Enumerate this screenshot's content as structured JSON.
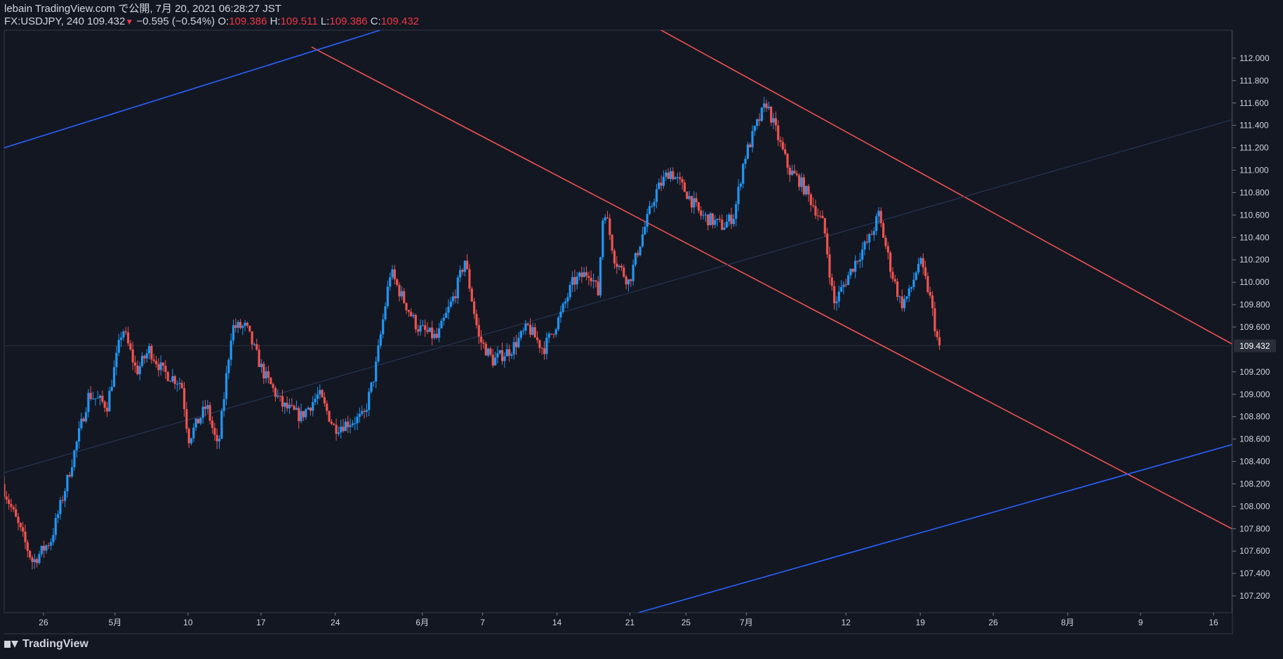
{
  "header": {
    "publish_line": "lebain TradingView.com で公開, 7月 20, 2021 06:28:27 JST",
    "symbol": "FX:USDJPY, 240",
    "last": "109.432",
    "down_arrow": "▼",
    "change": "−0.595 (−0.54%)",
    "o_label": "O:",
    "o_value": "109.386",
    "h_label": "H:",
    "h_value": "109.511",
    "l_label": "L:",
    "l_value": "109.386",
    "c_label": "C:",
    "c_value": "109.432"
  },
  "footer": {
    "brand": "TradingView",
    "icon": "tradingview-logo-icon"
  },
  "colors": {
    "up": "#2962ff",
    "up_wick": "#2196f3",
    "down": "#ef5350",
    "bg": "#131722",
    "grid": "#1e2330",
    "text": "#d1d4dc"
  },
  "chart_data": {
    "type": "candlestick",
    "symbol": "FX:USDJPY",
    "interval": "240",
    "ylim": [
      107.05,
      112.25
    ],
    "y_ticks": [
      112.0,
      111.8,
      111.6,
      111.4,
      111.2,
      111.0,
      110.8,
      110.6,
      110.4,
      110.2,
      110.0,
      109.8,
      109.6,
      109.2,
      109.0,
      108.8,
      108.6,
      108.4,
      108.2,
      108.0,
      107.8,
      107.6,
      107.4,
      107.2
    ],
    "y_tick_labels": [
      "112.000",
      "111.800",
      "111.600",
      "111.400",
      "111.200",
      "111.000",
      "110.800",
      "110.600",
      "110.400",
      "110.200",
      "110.000",
      "109.800",
      "109.600",
      "109.200",
      "109.000",
      "108.800",
      "108.600",
      "108.400",
      "108.200",
      "108.000",
      "107.800",
      "107.600",
      "107.400",
      "107.200"
    ],
    "last_price": 109.432,
    "last_price_label": "109.432",
    "x_range": [
      0,
      87.5
    ],
    "x_ticks": [
      {
        "label": "26",
        "day": 2.8
      },
      {
        "label": "5月",
        "day": 7.9
      },
      {
        "label": "10",
        "day": 13.1
      },
      {
        "label": "17",
        "day": 18.3
      },
      {
        "label": "24",
        "day": 23.6
      },
      {
        "label": "6月",
        "day": 29.8
      },
      {
        "label": "7",
        "day": 34.1
      },
      {
        "label": "14",
        "day": 39.4
      },
      {
        "label": "21",
        "day": 44.6
      },
      {
        "label": "25",
        "day": 48.6
      },
      {
        "label": "7月",
        "day": 52.9
      },
      {
        "label": "12",
        "day": 60.0
      },
      {
        "label": "19",
        "day": 65.3
      },
      {
        "label": "26",
        "day": 70.5
      },
      {
        "label": "8月",
        "day": 75.8
      },
      {
        "label": "9",
        "day": 81.0
      },
      {
        "label": "16",
        "day": 86.2
      }
    ],
    "path_points": [
      [
        0,
        108.2
      ],
      [
        2.2,
        107.5
      ],
      [
        3.5,
        107.7
      ],
      [
        4.6,
        108.2
      ],
      [
        6.2,
        109.0
      ],
      [
        7.5,
        108.9
      ],
      [
        8.6,
        109.6
      ],
      [
        9.6,
        109.2
      ],
      [
        10.5,
        109.4
      ],
      [
        11.5,
        109.2
      ],
      [
        12.8,
        109.1
      ],
      [
        13.3,
        108.6
      ],
      [
        14.6,
        108.9
      ],
      [
        15.4,
        108.5
      ],
      [
        16.4,
        109.6
      ],
      [
        17.4,
        109.6
      ],
      [
        18.6,
        109.2
      ],
      [
        20.0,
        108.9
      ],
      [
        21.3,
        108.8
      ],
      [
        22.6,
        109.0
      ],
      [
        23.7,
        108.7
      ],
      [
        25.8,
        108.8
      ],
      [
        26.6,
        109.2
      ],
      [
        27.7,
        110.1
      ],
      [
        28.4,
        109.9
      ],
      [
        29.6,
        109.6
      ],
      [
        31.0,
        109.5
      ],
      [
        32.3,
        109.9
      ],
      [
        33.0,
        110.2
      ],
      [
        34.0,
        109.5
      ],
      [
        35.0,
        109.3
      ],
      [
        36.3,
        109.4
      ],
      [
        37.5,
        109.6
      ],
      [
        38.6,
        109.4
      ],
      [
        39.8,
        109.7
      ],
      [
        40.7,
        110.0
      ],
      [
        41.9,
        110.1
      ],
      [
        42.5,
        109.9
      ],
      [
        42.9,
        110.7
      ],
      [
        43.7,
        110.2
      ],
      [
        44.7,
        110.0
      ],
      [
        45.6,
        110.4
      ],
      [
        46.6,
        110.8
      ],
      [
        47.6,
        111.0
      ],
      [
        48.8,
        110.8
      ],
      [
        49.8,
        110.6
      ],
      [
        51.4,
        110.5
      ],
      [
        52.2,
        110.6
      ],
      [
        52.9,
        111.1
      ],
      [
        53.8,
        111.4
      ],
      [
        54.5,
        111.6
      ],
      [
        55.3,
        111.3
      ],
      [
        56.1,
        111.0
      ],
      [
        56.9,
        110.9
      ],
      [
        57.8,
        110.7
      ],
      [
        58.6,
        110.5
      ],
      [
        59.3,
        109.8
      ],
      [
        60.1,
        110.0
      ],
      [
        60.9,
        110.2
      ],
      [
        61.9,
        110.4
      ],
      [
        62.5,
        110.6
      ],
      [
        63.4,
        110.1
      ],
      [
        64.1,
        109.8
      ],
      [
        64.7,
        109.9
      ],
      [
        65.4,
        110.2
      ],
      [
        66.1,
        109.9
      ],
      [
        66.8,
        109.4
      ]
    ],
    "trendlines": [
      {
        "color": "#ef5350",
        "from": [
          21.9,
          112.1
        ],
        "to": [
          87.5,
          107.8
        ]
      },
      {
        "color": "#ef5350",
        "from": [
          46.1,
          112.3
        ],
        "to": [
          87.5,
          109.45
        ]
      },
      {
        "color": "#2962ff",
        "from": [
          0,
          111.2
        ],
        "to": [
          26.8,
          112.25
        ]
      },
      {
        "color": "#2962ff",
        "from": [
          45.2,
          107.05
        ],
        "to": [
          87.5,
          108.55
        ]
      },
      {
        "color": "#2a3a5e",
        "from": [
          0,
          108.3
        ],
        "to": [
          87.5,
          111.45
        ]
      }
    ]
  }
}
